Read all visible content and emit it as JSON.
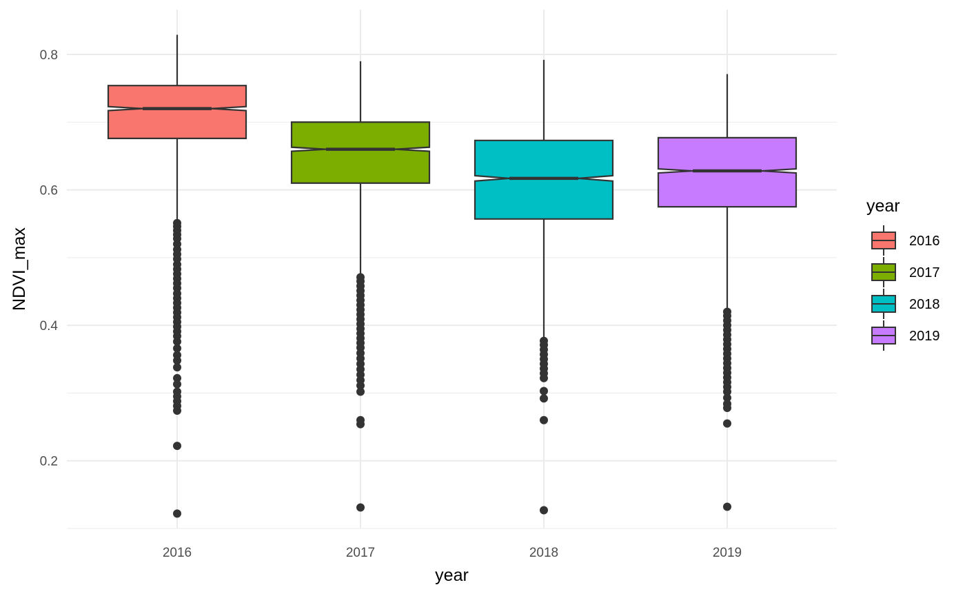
{
  "chart_data": {
    "type": "boxplot",
    "notched": true,
    "title": "",
    "xlabel": "year",
    "ylabel": "NDVI_max",
    "ylim": [
      0.1,
      0.86
    ],
    "y_ticks": [
      0.2,
      0.4,
      0.6,
      0.8
    ],
    "y_tick_labels": [
      "0.2",
      "0.4",
      "0.6",
      "0.8"
    ],
    "categories": [
      "2016",
      "2017",
      "2018",
      "2019"
    ],
    "grid": true,
    "legend": {
      "title": "year",
      "position": "right",
      "entries": [
        "2016",
        "2017",
        "2018",
        "2019"
      ]
    },
    "colors": {
      "2016": "#F8766D",
      "2017": "#7CAE00",
      "2018": "#00BFC4",
      "2019": "#C77CFF",
      "outline": "#333333",
      "grid": "#ebebeb"
    },
    "boxes": [
      {
        "category": "2016",
        "q1": 0.676,
        "median": 0.72,
        "q3": 0.754,
        "notch": 0.003,
        "whisker_low": 0.552,
        "whisker_high": 0.829,
        "outliers": [
          0.551,
          0.546,
          0.54,
          0.534,
          0.528,
          0.52,
          0.512,
          0.505,
          0.498,
          0.49,
          0.483,
          0.476,
          0.469,
          0.462,
          0.455,
          0.447,
          0.44,
          0.433,
          0.426,
          0.419,
          0.412,
          0.405,
          0.398,
          0.391,
          0.384,
          0.376,
          0.366,
          0.356,
          0.348,
          0.338,
          0.322,
          0.313,
          0.302,
          0.295,
          0.288,
          0.281,
          0.274,
          0.222,
          0.122
        ]
      },
      {
        "category": "2017",
        "q1": 0.61,
        "median": 0.66,
        "q3": 0.7,
        "notch": 0.003,
        "whisker_low": 0.472,
        "whisker_high": 0.79,
        "outliers": [
          0.471,
          0.465,
          0.458,
          0.451,
          0.444,
          0.437,
          0.43,
          0.423,
          0.416,
          0.409,
          0.402,
          0.395,
          0.388,
          0.381,
          0.374,
          0.367,
          0.359,
          0.351,
          0.343,
          0.335,
          0.327,
          0.319,
          0.311,
          0.302,
          0.26,
          0.254,
          0.131
        ]
      },
      {
        "category": "2018",
        "q1": 0.557,
        "median": 0.617,
        "q3": 0.673,
        "notch": 0.004,
        "whisker_low": 0.378,
        "whisker_high": 0.792,
        "outliers": [
          0.377,
          0.371,
          0.364,
          0.357,
          0.35,
          0.343,
          0.336,
          0.329,
          0.322,
          0.303,
          0.292,
          0.26,
          0.127
        ]
      },
      {
        "category": "2019",
        "q1": 0.575,
        "median": 0.628,
        "q3": 0.677,
        "notch": 0.003,
        "whisker_low": 0.421,
        "whisker_high": 0.771,
        "outliers": [
          0.42,
          0.414,
          0.407,
          0.4,
          0.393,
          0.386,
          0.379,
          0.372,
          0.365,
          0.358,
          0.351,
          0.344,
          0.337,
          0.33,
          0.323,
          0.316,
          0.309,
          0.302,
          0.293,
          0.284,
          0.278,
          0.255,
          0.132
        ]
      }
    ]
  }
}
